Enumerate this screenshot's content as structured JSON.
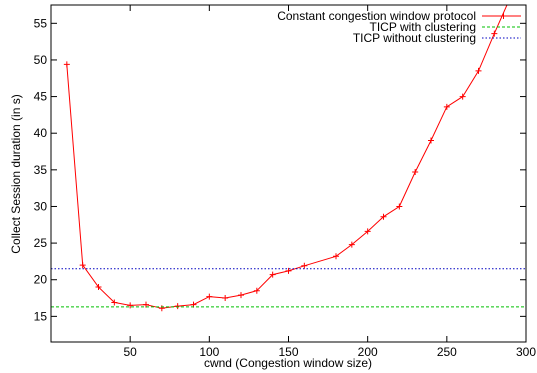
{
  "chart_data": {
    "type": "line",
    "title": "",
    "xlabel": "cwnd (Congestion window size)",
    "ylabel": "Collect Session duration (in s)",
    "xlim": [
      0,
      300
    ],
    "ylim": [
      11.5,
      57.5
    ],
    "xticks": [
      50,
      100,
      150,
      200,
      250,
      300
    ],
    "yticks": [
      15,
      20,
      25,
      30,
      35,
      40,
      45,
      50,
      55
    ],
    "grid": false,
    "legend_position": "top-right",
    "series": [
      {
        "name": "Constant congestion window protocol",
        "color": "#ff0000",
        "marker": "plus",
        "points": [
          [
            10,
            49.4
          ],
          [
            20,
            22.0
          ],
          [
            30,
            19.0
          ],
          [
            40,
            16.9
          ],
          [
            50,
            16.5
          ],
          [
            60,
            16.6
          ],
          [
            70,
            16.1
          ],
          [
            80,
            16.4
          ],
          [
            90,
            16.6
          ],
          [
            100,
            17.7
          ],
          [
            110,
            17.5
          ],
          [
            120,
            17.9
          ],
          [
            130,
            18.5
          ],
          [
            140,
            20.7
          ],
          [
            150,
            21.2
          ],
          [
            160,
            21.9
          ],
          [
            180,
            23.2
          ],
          [
            190,
            24.8
          ],
          [
            200,
            26.6
          ],
          [
            210,
            28.6
          ],
          [
            220,
            30.0
          ],
          [
            230,
            34.7
          ],
          [
            240,
            39.0
          ],
          [
            250,
            43.6
          ],
          [
            260,
            45.0
          ],
          [
            270,
            48.5
          ],
          [
            280,
            53.6
          ],
          [
            290,
            58.5
          ]
        ]
      },
      {
        "name": "TICP with clustering",
        "color": "#00c000",
        "style": "dashed",
        "constant": 16.3
      },
      {
        "name": "TICP without clustering",
        "color": "#0000c0",
        "style": "dotted",
        "constant": 21.5
      }
    ]
  }
}
